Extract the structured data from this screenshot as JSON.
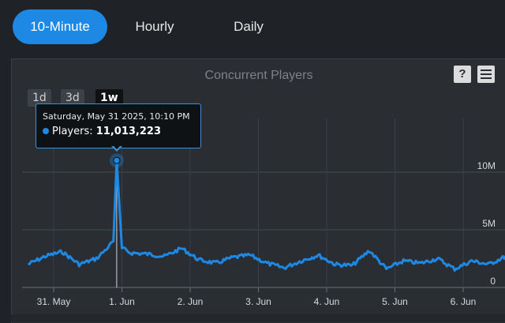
{
  "tabs": [
    {
      "label": "10-Minute",
      "active": true
    },
    {
      "label": "Hourly",
      "active": false
    },
    {
      "label": "Daily",
      "active": false
    }
  ],
  "chart": {
    "title": "Concurrent Players",
    "help_label": "?",
    "menu_icon": "hamburger-menu-icon",
    "range_buttons": [
      {
        "label": "1d",
        "active": false
      },
      {
        "label": "3d",
        "active": false
      },
      {
        "label": "1w",
        "active": true
      }
    ],
    "tooltip": {
      "date": "Saturday, May 31 2025, 10:10 PM",
      "series_label": "Players:",
      "value": "11,013,223"
    }
  },
  "chart_data": {
    "type": "line",
    "title": "Concurrent Players",
    "series": [
      {
        "name": "Players",
        "x": [
          "2025-05-30 15:00",
          "2025-05-30 21:00",
          "2025-05-31 03:00",
          "2025-05-31 09:00",
          "2025-05-31 15:00",
          "2025-05-31 18:00",
          "2025-05-31 21:00",
          "2025-05-31 22:10",
          "2025-06-01 00:00",
          "2025-06-01 03:00",
          "2025-06-01 09:00",
          "2025-06-01 15:00",
          "2025-06-01 21:00",
          "2025-06-02 03:00",
          "2025-06-02 09:00",
          "2025-06-02 15:00",
          "2025-06-02 21:00",
          "2025-06-03 03:00",
          "2025-06-03 09:00",
          "2025-06-03 15:00",
          "2025-06-03 21:00",
          "2025-06-04 03:00",
          "2025-06-04 09:00",
          "2025-06-04 15:00",
          "2025-06-04 21:00",
          "2025-06-05 03:00",
          "2025-06-05 09:00",
          "2025-06-05 15:00",
          "2025-06-05 21:00",
          "2025-06-06 03:00",
          "2025-06-06 09:00",
          "2025-06-06 15:00",
          "2025-06-06 21:00"
        ],
        "y": [
          2.0,
          2.7,
          3.1,
          2.0,
          2.5,
          3.2,
          4.0,
          11.013223,
          3.4,
          3.0,
          2.9,
          2.7,
          3.4,
          2.4,
          2.1,
          2.6,
          2.8,
          2.1,
          1.7,
          2.3,
          2.8,
          2.0,
          1.9,
          3.2,
          1.6,
          2.3,
          2.1,
          2.5,
          1.6,
          2.3,
          2.0,
          2.7,
          1.8
        ]
      }
    ],
    "y_ticks": [
      "0",
      "5M",
      "10M"
    ],
    "x_ticks": [
      "31. May",
      "1. Jun",
      "2. Jun",
      "3. Jun",
      "4. Jun",
      "5. Jun",
      "6. Jun"
    ],
    "ylim": [
      0,
      14
    ],
    "y_unit": "millions",
    "line_color": "#1e88e5",
    "grid": true
  }
}
